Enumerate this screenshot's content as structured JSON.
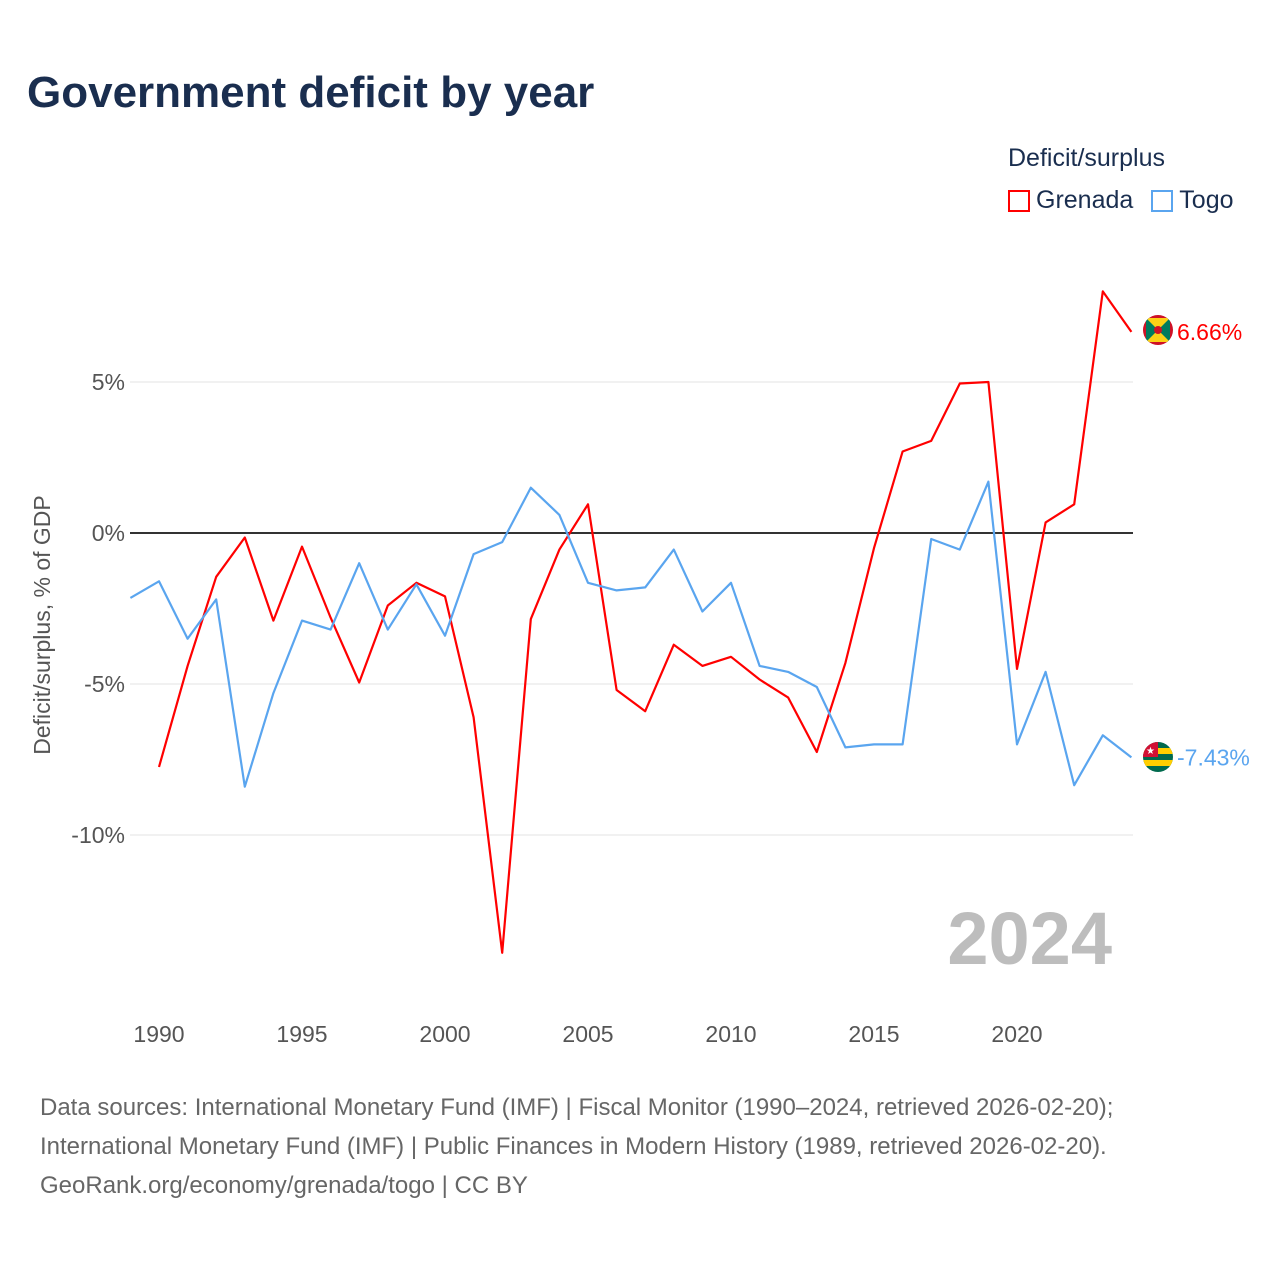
{
  "chart_data": {
    "type": "line",
    "title": "Government deficit by year",
    "ylabel": "Deficit/surplus, % of GDP",
    "xlabel": "",
    "ylim": [
      -16,
      9
    ],
    "xlim": [
      1989,
      2024
    ],
    "yticks": [
      {
        "value": 5,
        "label": "5%"
      },
      {
        "value": 0,
        "label": "0%"
      },
      {
        "value": -5,
        "label": "-5%"
      },
      {
        "value": -10,
        "label": "-10%"
      }
    ],
    "xticks": [
      {
        "value": 1990,
        "label": "1990"
      },
      {
        "value": 1995,
        "label": "1995"
      },
      {
        "value": 2000,
        "label": "2000"
      },
      {
        "value": 2005,
        "label": "2005"
      },
      {
        "value": 2010,
        "label": "2010"
      },
      {
        "value": 2015,
        "label": "2015"
      },
      {
        "value": 2020,
        "label": "2020"
      }
    ],
    "grid": true,
    "legend_title": "Deficit/surplus",
    "legend_position": "top-right",
    "year_watermark": "2024",
    "series": [
      {
        "name": "Grenada",
        "color": "#ff0000",
        "end_label": "6.66%",
        "flag": "grenada-flag",
        "x": [
          1990,
          1991,
          1992,
          1993,
          1994,
          1995,
          1996,
          1997,
          1998,
          1999,
          2000,
          2001,
          2002,
          2003,
          2004,
          2005,
          2006,
          2007,
          2008,
          2009,
          2010,
          2011,
          2012,
          2013,
          2014,
          2015,
          2016,
          2017,
          2018,
          2019,
          2020,
          2021,
          2022,
          2023,
          2024
        ],
        "values": [
          -7.75,
          -4.4,
          -1.45,
          -0.15,
          -2.9,
          -0.45,
          -2.8,
          -4.95,
          -2.4,
          -1.65,
          -2.1,
          -6.1,
          -13.9,
          -2.85,
          -0.55,
          0.95,
          -5.2,
          -5.9,
          -3.7,
          -4.4,
          -4.1,
          -4.85,
          -5.45,
          -7.25,
          -4.3,
          -0.5,
          2.7,
          3.05,
          4.95,
          5.0,
          -4.5,
          0.35,
          0.95,
          8.0,
          6.66
        ]
      },
      {
        "name": "Togo",
        "color": "#5aa5ef",
        "end_label": "-7.43%",
        "flag": "togo-flag",
        "x": [
          1989,
          1990,
          1991,
          1992,
          1993,
          1994,
          1995,
          1996,
          1997,
          1998,
          1999,
          2000,
          2001,
          2002,
          2003,
          2004,
          2005,
          2006,
          2007,
          2008,
          2009,
          2010,
          2011,
          2012,
          2013,
          2014,
          2015,
          2016,
          2017,
          2018,
          2019,
          2020,
          2021,
          2022,
          2023,
          2024
        ],
        "values": [
          -2.15,
          -1.6,
          -3.5,
          -2.2,
          -8.4,
          -5.3,
          -2.9,
          -3.2,
          -1.0,
          -3.2,
          -1.7,
          -3.4,
          -0.7,
          -0.3,
          1.5,
          0.6,
          -1.65,
          -1.9,
          -1.8,
          -0.55,
          -2.6,
          -1.65,
          -4.4,
          -4.6,
          -5.1,
          -7.1,
          -7.0,
          -7.0,
          -0.2,
          -0.55,
          1.7,
          -7.0,
          -4.6,
          -8.35,
          -6.7,
          -7.43
        ]
      }
    ]
  },
  "footer": {
    "line1": "Data sources: International Monetary Fund (IMF) | Fiscal Monitor (1990–2024, retrieved 2026-02-20);",
    "line2": "International Monetary Fund (IMF) | Public Finances in Modern History (1989, retrieved 2026-02-20).",
    "line3": "GeoRank.org/economy/grenada/togo | CC BY"
  }
}
